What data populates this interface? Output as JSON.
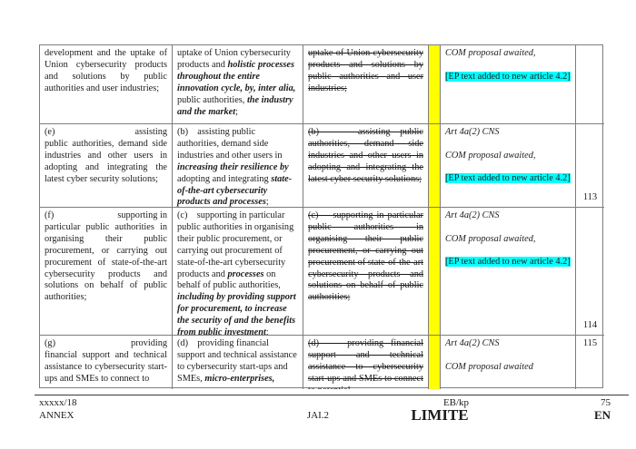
{
  "colors": {
    "highlight": "#00ffff",
    "stripe": "#ffff00"
  },
  "rows": [
    {
      "col1": {
        "marker": "",
        "first": "",
        "rest": "development and the uptake of Union cybersecurity products and solutions by public authorities and user industries;"
      },
      "col2": [
        {
          "t": "uptake of Union cybersecurity products and ",
          "s": "n"
        },
        {
          "t": "holistic processes throughout the entire innovation cycle, by, inter alia, ",
          "s": "bi"
        },
        {
          "t": "public authorities, ",
          "s": "n"
        },
        {
          "t": "the industry and the market",
          "s": "bi"
        },
        {
          "t": ";",
          "s": "n"
        }
      ],
      "col3": "uptake of Union cybersecurity products and solutions by public authorities and user industries;",
      "comments": [
        {
          "t": "COM proposal awaited,",
          "s": "i"
        },
        {
          "t": "[EP text added to new article 4.2]",
          "s": "hl"
        }
      ],
      "num": ""
    },
    {
      "col1": {
        "marker": "(e)",
        "first": "assisting",
        "rest": "public authorities, demand side industries and other users in adopting and integrating the latest cyber security solutions;"
      },
      "col2": [
        {
          "t": "(b)    assisting public authorities, demand side industries and other users in ",
          "s": "n"
        },
        {
          "t": "increasing their resilience by ",
          "s": "bi"
        },
        {
          "t": "adopting and integrating ",
          "s": "n"
        },
        {
          "t": "state-of-the-art cybersecurity products and processes",
          "s": "bi"
        },
        {
          "t": ";",
          "s": "n"
        }
      ],
      "col3": "(b)    assisting public authorities, demand side industries and other users in adopting and integrating the latest cyber security solutions;",
      "comments": [
        {
          "t": "Art 4a(2) CNS",
          "s": "i"
        },
        {
          "t": "COM proposal awaited,",
          "s": "i"
        },
        {
          "t": "[EP text added to new article 4.2]",
          "s": "hl"
        }
      ],
      "num": "113"
    },
    {
      "col1": {
        "marker": "(f)",
        "first": "supporting in",
        "rest": "particular public authorities in organising their public procurement, or carrying out procurement of state-of-the-art cybersecurity products and solutions on behalf of public authorities;"
      },
      "col2": [
        {
          "t": "(c)    supporting in particular public authorities in organising their public procurement, or carrying out procurement of state-of-the-art cybersecurity products and ",
          "s": "n"
        },
        {
          "t": "processes",
          "s": "bi"
        },
        {
          "t": " on behalf of public authorities, ",
          "s": "n"
        },
        {
          "t": "including by providing support for procurement, to increase the security of and the benefits from public investment",
          "s": "bi"
        },
        {
          "t": ";",
          "s": "n"
        }
      ],
      "col3": "(c)    supporting in particular public authorities in organising their public procurement, or carrying out procurement of state-of-the-art cybersecurity products and solutions on behalf of public authorities;",
      "comments": [
        {
          "t": "Art 4a(2) CNS",
          "s": "i"
        },
        {
          "t": "COM proposal awaited,",
          "s": "i"
        },
        {
          "t": "[EP text added to new article 4.2]",
          "s": "hl"
        }
      ],
      "num": "114"
    },
    {
      "col1": {
        "marker": "(g)",
        "first": "providing",
        "rest": "financial support and technical assistance to cybersecurity start-ups and SMEs to connect to"
      },
      "col2": [
        {
          "t": "(d)    providing financial support and technical assistance to cybersecurity start-ups and SMEs, ",
          "s": "n"
        },
        {
          "t": "micro-enterprises,",
          "s": "bi"
        }
      ],
      "col3": "(d)    providing financial support and technical assistance to cybersecurity start-ups and SMEs to connect to potential",
      "comments": [
        {
          "t": "Art 4a(2) CNS",
          "s": "i"
        },
        {
          "t": "COM proposal awaited",
          "s": "i"
        }
      ],
      "num": "115"
    }
  ],
  "footer": {
    "doc_number": "xxxxx/18",
    "annex": "ANNEX",
    "unit": "JAI.2",
    "initials": "EB/kp",
    "classification": "LIMITE",
    "page_number": "75",
    "language": "EN"
  }
}
